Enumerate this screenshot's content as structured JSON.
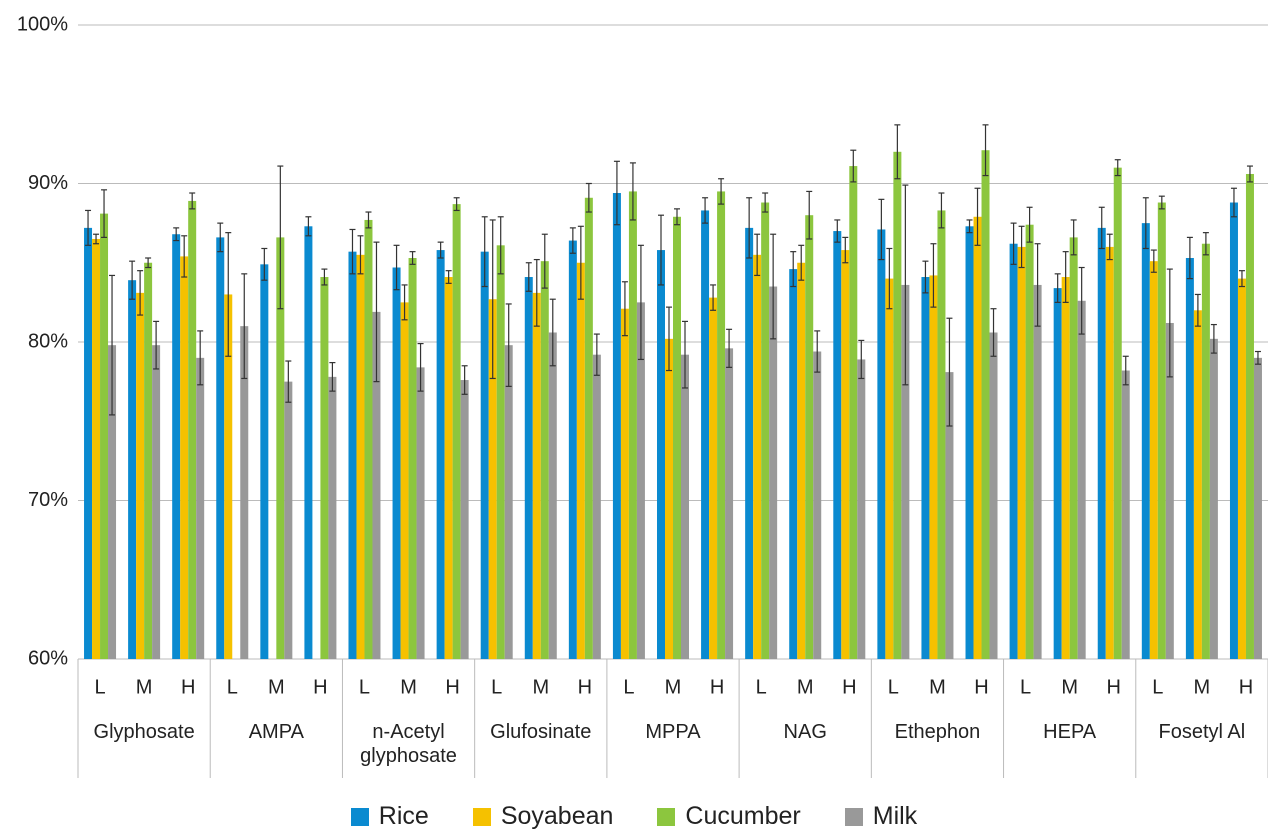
{
  "chart_data": {
    "type": "bar",
    "groups": [
      "Glyphosate",
      "AMPA",
      "n-Acetyl glyphosate",
      "Glufosinate",
      "MPPA",
      "NAG",
      "Ethephon",
      "HEPA",
      "Fosetyl Al"
    ],
    "categories": [
      "L",
      "M",
      "H",
      "L",
      "M",
      "H",
      "L",
      "M",
      "H",
      "L",
      "M",
      "H",
      "L",
      "M",
      "H",
      "L",
      "M",
      "H",
      "L",
      "M",
      "H",
      "L",
      "M",
      "H",
      "L",
      "M",
      "H"
    ],
    "ylim": [
      60,
      100
    ],
    "yticks": [
      {
        "value": 60,
        "label": "60%"
      },
      {
        "value": 70,
        "label": "70%"
      },
      {
        "value": 80,
        "label": "80%"
      },
      {
        "value": 90,
        "label": "90%"
      },
      {
        "value": 100,
        "label": "100%"
      }
    ],
    "grid": true,
    "legend": "bottom",
    "series": [
      {
        "name": "Rice",
        "color": "#0a8ad0",
        "values": [
          87.2,
          83.9,
          86.8,
          86.6,
          84.9,
          87.3,
          85.7,
          84.7,
          85.8,
          85.7,
          84.1,
          86.4,
          89.4,
          85.8,
          88.3,
          87.2,
          84.6,
          87.0,
          87.1,
          84.1,
          87.3,
          86.2,
          83.4,
          87.2,
          87.5,
          85.3,
          88.8
        ],
        "errors": [
          1.1,
          1.2,
          0.4,
          0.9,
          1.0,
          0.6,
          1.4,
          1.4,
          0.5,
          2.2,
          0.9,
          0.8,
          2.0,
          2.2,
          0.8,
          1.9,
          1.1,
          0.7,
          1.9,
          1.0,
          0.4,
          1.3,
          0.9,
          1.3,
          1.6,
          1.3,
          0.9
        ]
      },
      {
        "name": "Soyabean",
        "color": "#f5c100",
        "values": [
          86.5,
          83.1,
          85.4,
          83.0,
          null,
          null,
          85.5,
          82.5,
          84.1,
          82.7,
          83.1,
          85.0,
          82.1,
          80.2,
          82.8,
          85.5,
          85.0,
          85.8,
          84.0,
          84.2,
          87.9,
          86.0,
          84.1,
          86.0,
          85.1,
          82.0,
          84.0
        ],
        "errors": [
          0.3,
          1.4,
          1.3,
          3.9,
          null,
          null,
          1.2,
          1.1,
          0.4,
          5.0,
          2.1,
          2.3,
          1.7,
          2.0,
          0.8,
          1.3,
          1.1,
          0.8,
          1.9,
          2.0,
          1.8,
          1.3,
          1.6,
          0.8,
          0.7,
          1.0,
          0.5
        ]
      },
      {
        "name": "Cucumber",
        "color": "#8cc63e",
        "values": [
          88.1,
          85.0,
          88.9,
          null,
          86.6,
          84.1,
          87.7,
          85.3,
          88.7,
          86.1,
          85.1,
          89.1,
          89.5,
          87.9,
          89.5,
          88.8,
          88.0,
          91.1,
          92.0,
          88.3,
          92.1,
          87.4,
          86.6,
          91.0,
          88.8,
          86.2,
          90.6
        ],
        "errors": [
          1.5,
          0.3,
          0.5,
          null,
          4.5,
          0.5,
          0.5,
          0.4,
          0.4,
          1.8,
          1.7,
          0.9,
          1.8,
          0.5,
          0.8,
          0.6,
          1.5,
          1.0,
          1.7,
          1.1,
          1.6,
          1.1,
          1.1,
          0.5,
          0.4,
          0.7,
          0.5
        ]
      },
      {
        "name": "Milk",
        "color": "#999999",
        "values": [
          79.8,
          79.8,
          79.0,
          81.0,
          77.5,
          77.8,
          81.9,
          78.4,
          77.6,
          79.8,
          80.6,
          79.2,
          82.5,
          79.2,
          79.6,
          83.5,
          79.4,
          78.9,
          83.6,
          78.1,
          80.6,
          83.6,
          82.6,
          78.2,
          81.2,
          80.2,
          79.0
        ],
        "errors": [
          4.4,
          1.5,
          1.7,
          3.3,
          1.3,
          0.9,
          4.4,
          1.5,
          0.9,
          2.6,
          2.1,
          1.3,
          3.6,
          2.1,
          1.2,
          3.3,
          1.3,
          1.2,
          6.3,
          3.4,
          1.5,
          2.6,
          2.1,
          0.9,
          3.4,
          0.9,
          0.4
        ]
      }
    ]
  }
}
